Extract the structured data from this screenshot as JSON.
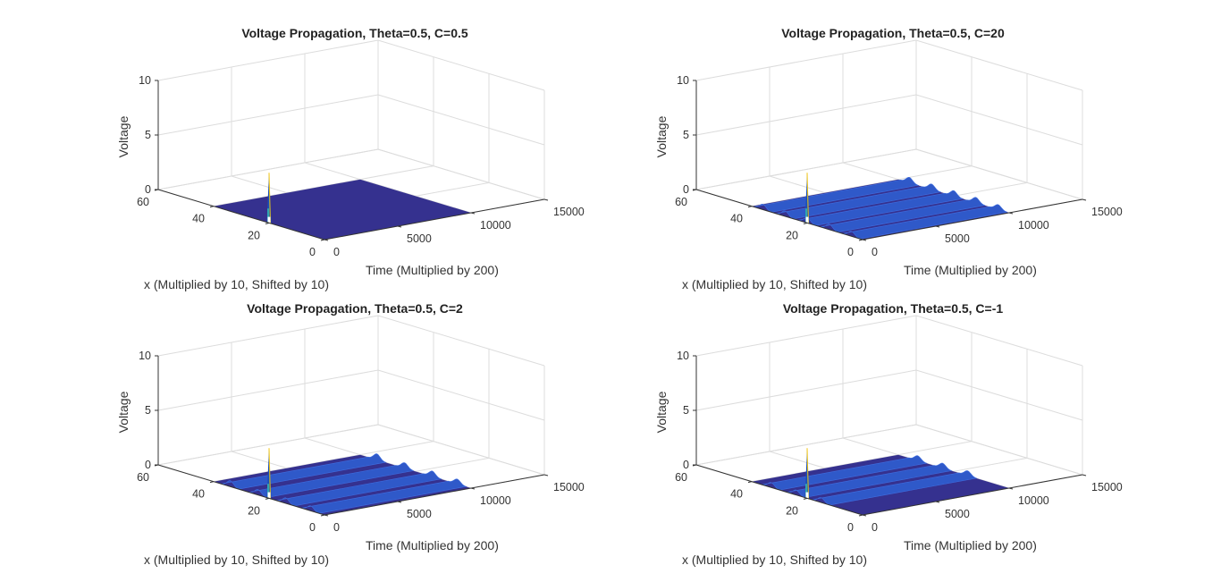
{
  "chart_data": [
    {
      "type": "surface",
      "title": "Voltage Propagation, Theta=0.5, C=0.5",
      "xlabel": "Time (Multiplied by 200)",
      "ylabel": "x (Multiplied by 10, Shifted by 10)",
      "zlabel": "Voltage",
      "xticks": [
        0,
        5000,
        10000,
        15000
      ],
      "yticks": [
        0,
        20,
        40,
        60
      ],
      "zticks": [
        0,
        5,
        10
      ],
      "xlim": [
        0,
        15000
      ],
      "ylim": [
        0,
        60
      ],
      "zlim": [
        0,
        10
      ],
      "grid": true,
      "spike": {
        "time": 0,
        "x": 20,
        "peak": 4.6
      },
      "surface_time_range": [
        0,
        10000
      ],
      "surface_x_range": [
        0,
        40
      ],
      "ridges": [],
      "colormap": "parula"
    },
    {
      "type": "surface",
      "title": "Voltage Propagation, Theta=0.5, C=20",
      "xlabel": "Time (Multiplied by 200)",
      "ylabel": "x (Multiplied by 10, Shifted by 10)",
      "zlabel": "Voltage",
      "xticks": [
        0,
        5000,
        10000,
        15000
      ],
      "yticks": [
        0,
        20,
        40,
        60
      ],
      "zticks": [
        0,
        5,
        10
      ],
      "xlim": [
        0,
        15000
      ],
      "ylim": [
        0,
        60
      ],
      "zlim": [
        0,
        10
      ],
      "grid": true,
      "spike": {
        "time": 0,
        "x": 20,
        "peak": 4.6
      },
      "surface_time_range": [
        0,
        10000
      ],
      "surface_x_range": [
        0,
        40
      ],
      "ridges": [
        {
          "x": 36,
          "height": 0.5
        },
        {
          "x": 28,
          "height": 0.5
        },
        {
          "x": 20,
          "height": 0.5
        },
        {
          "x": 12,
          "height": 0.5
        },
        {
          "x": 4,
          "height": 0.45
        }
      ],
      "colormap": "parula"
    },
    {
      "type": "surface",
      "title": "Voltage Propagation, Theta=0.5, C=2",
      "xlabel": "Time (Multiplied by 200)",
      "ylabel": "x (Multiplied by 10, Shifted by 10)",
      "zlabel": "Voltage",
      "xticks": [
        0,
        5000,
        10000,
        15000
      ],
      "yticks": [
        0,
        20,
        40,
        60
      ],
      "zticks": [
        0,
        5,
        10
      ],
      "xlim": [
        0,
        15000
      ],
      "ylim": [
        0,
        60
      ],
      "zlim": [
        0,
        10
      ],
      "grid": true,
      "spike": {
        "time": 0,
        "x": 20,
        "peak": 4.6
      },
      "surface_time_range": [
        0,
        10000
      ],
      "surface_x_range": [
        0,
        40
      ],
      "ridges": [
        {
          "x": 34,
          "height": 0.55
        },
        {
          "x": 24,
          "height": 0.5
        },
        {
          "x": 14,
          "height": 0.5
        },
        {
          "x": 5,
          "height": 0.45
        }
      ],
      "colormap": "parula"
    },
    {
      "type": "surface",
      "title": "Voltage Propagation, Theta=0.5, C=-1",
      "xlabel": "Time (Multiplied by 200)",
      "ylabel": "x (Multiplied by 10, Shifted by 10)",
      "zlabel": "Voltage",
      "xticks": [
        0,
        5000,
        10000,
        15000
      ],
      "yticks": [
        0,
        20,
        40,
        60
      ],
      "zticks": [
        0,
        5,
        10
      ],
      "xlim": [
        0,
        15000
      ],
      "ylim": [
        0,
        60
      ],
      "zlim": [
        0,
        10
      ],
      "grid": true,
      "spike": {
        "time": 0,
        "x": 20,
        "peak": 4.6
      },
      "surface_time_range": [
        0,
        10000
      ],
      "surface_x_range": [
        0,
        40
      ],
      "ridges": [
        {
          "x": 33,
          "height": 0.45
        },
        {
          "x": 24,
          "height": 0.45
        },
        {
          "x": 15,
          "height": 0.45
        }
      ],
      "colormap": "parula"
    }
  ]
}
